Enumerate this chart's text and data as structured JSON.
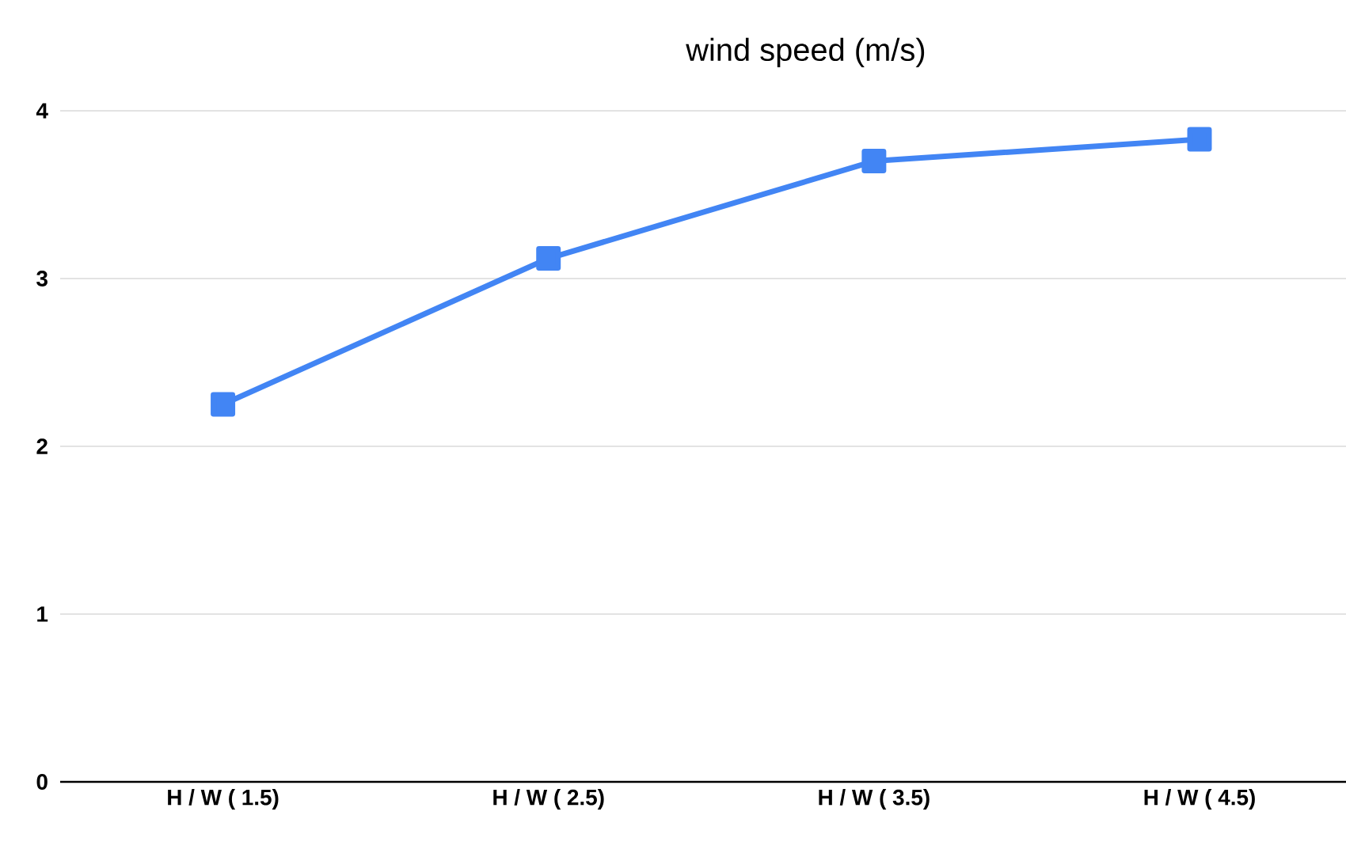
{
  "chart_data": {
    "type": "line",
    "title": "wind speed (m/s)",
    "categories": [
      "H / W ( 1.5)",
      "H / W ( 2.5)",
      "H / W ( 3.5)",
      "H / W ( 4.5)"
    ],
    "series": [
      {
        "color": "#4285f4",
        "values": [
          2.25,
          3.12,
          3.7,
          3.83
        ]
      }
    ],
    "ylim": [
      0,
      4
    ],
    "yticks": [
      0,
      1,
      2,
      3,
      4
    ],
    "grid": "y",
    "marker": "square",
    "line_style": "solid"
  }
}
